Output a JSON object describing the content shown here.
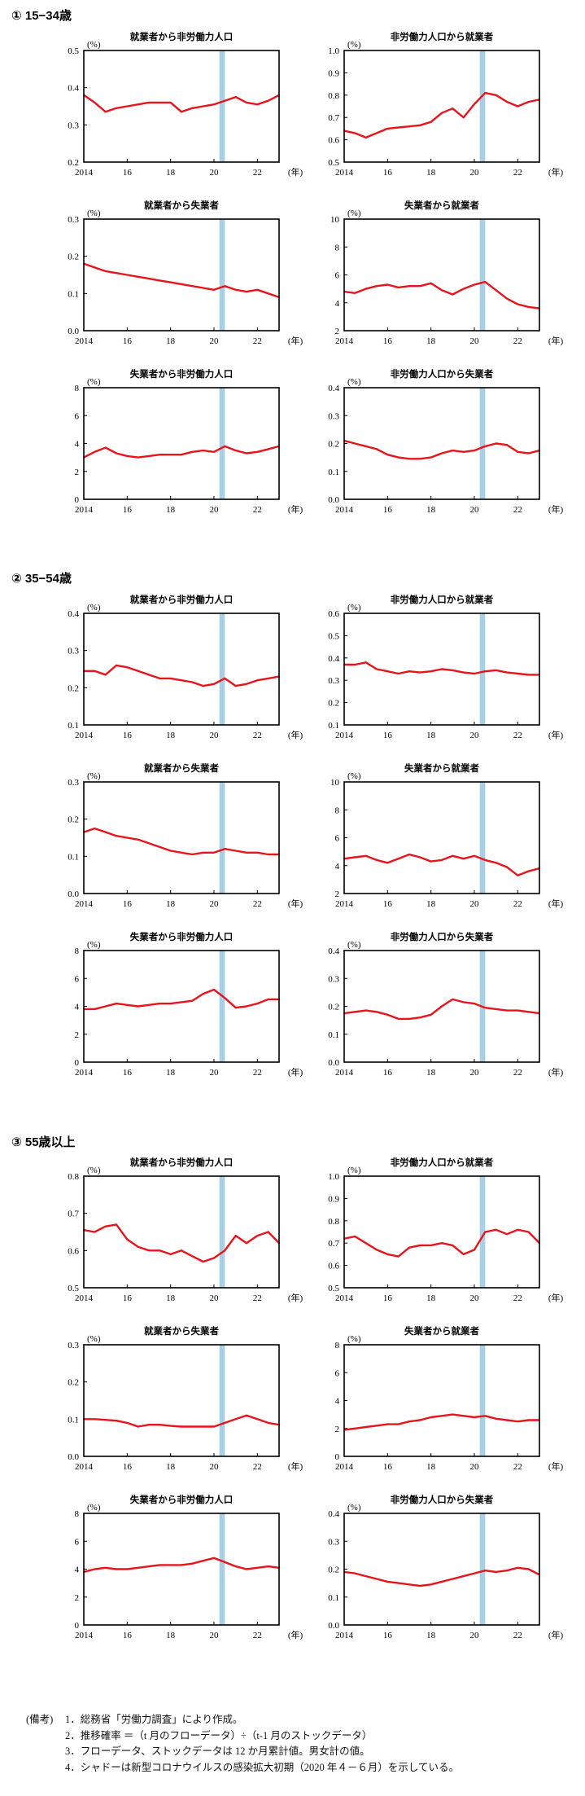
{
  "sections": [
    {
      "title": "① 15−34歳"
    },
    {
      "title": "② 35−54歳"
    },
    {
      "title": "③ 55歳以上"
    }
  ],
  "axis": {
    "y_unit": "(%)",
    "x_unit": "(年)",
    "x_ticks": [
      "2014",
      "16",
      "18",
      "20",
      "22"
    ]
  },
  "shade": {
    "start": 2020.25,
    "end": 2020.5,
    "color": "#a9cfe4"
  },
  "line_color": "#e8141c",
  "chart_data": [
    {
      "type": "line",
      "section": 0,
      "title": "就業者から非労働力人口",
      "ylim": [
        0.2,
        0.5
      ],
      "yticks": [
        "0.2",
        "0.3",
        "0.4",
        "0.5"
      ],
      "x": [
        2014.0,
        2014.5,
        2015.0,
        2015.5,
        2016.0,
        2016.5,
        2017.0,
        2017.5,
        2018.0,
        2018.5,
        2019.0,
        2019.5,
        2020.0,
        2020.5,
        2021.0,
        2021.5,
        2022.0,
        2022.5,
        2023.0
      ],
      "values": [
        0.38,
        0.36,
        0.335,
        0.345,
        0.35,
        0.355,
        0.36,
        0.36,
        0.36,
        0.335,
        0.345,
        0.35,
        0.355,
        0.365,
        0.375,
        0.36,
        0.355,
        0.365,
        0.38
      ]
    },
    {
      "type": "line",
      "section": 0,
      "title": "非労働力人口から就業者",
      "ylim": [
        0.5,
        1.0
      ],
      "yticks": [
        "0.5",
        "0.6",
        "0.7",
        "0.8",
        "0.9",
        "1.0"
      ],
      "x": [
        2014.0,
        2014.5,
        2015.0,
        2015.5,
        2016.0,
        2016.5,
        2017.0,
        2017.5,
        2018.0,
        2018.5,
        2019.0,
        2019.5,
        2020.0,
        2020.5,
        2021.0,
        2021.5,
        2022.0,
        2022.5,
        2023.0
      ],
      "values": [
        0.64,
        0.63,
        0.61,
        0.63,
        0.65,
        0.655,
        0.66,
        0.665,
        0.68,
        0.72,
        0.74,
        0.7,
        0.76,
        0.81,
        0.8,
        0.77,
        0.75,
        0.77,
        0.78
      ]
    },
    {
      "type": "line",
      "section": 0,
      "title": "就業者から失業者",
      "ylim": [
        0.0,
        0.3
      ],
      "yticks": [
        "0.0",
        "0.1",
        "0.2",
        "0.3"
      ],
      "x": [
        2014.0,
        2014.5,
        2015.0,
        2015.5,
        2016.0,
        2016.5,
        2017.0,
        2017.5,
        2018.0,
        2018.5,
        2019.0,
        2019.5,
        2020.0,
        2020.5,
        2021.0,
        2021.5,
        2022.0,
        2022.5,
        2023.0
      ],
      "values": [
        0.18,
        0.17,
        0.16,
        0.155,
        0.15,
        0.145,
        0.14,
        0.135,
        0.13,
        0.125,
        0.12,
        0.115,
        0.11,
        0.12,
        0.11,
        0.105,
        0.11,
        0.1,
        0.09
      ]
    },
    {
      "type": "line",
      "section": 0,
      "title": "失業者から就業者",
      "ylim": [
        2,
        10
      ],
      "yticks": [
        "2",
        "4",
        "6",
        "8",
        "10"
      ],
      "x": [
        2014.0,
        2014.5,
        2015.0,
        2015.5,
        2016.0,
        2016.5,
        2017.0,
        2017.5,
        2018.0,
        2018.5,
        2019.0,
        2019.5,
        2020.0,
        2020.5,
        2021.0,
        2021.5,
        2022.0,
        2022.5,
        2023.0
      ],
      "values": [
        4.8,
        4.7,
        5.0,
        5.2,
        5.3,
        5.1,
        5.2,
        5.2,
        5.4,
        4.9,
        4.6,
        5.0,
        5.3,
        5.5,
        4.9,
        4.3,
        3.9,
        3.7,
        3.6
      ]
    },
    {
      "type": "line",
      "section": 0,
      "title": "失業者から非労働力人口",
      "ylim": [
        0,
        8
      ],
      "yticks": [
        "0",
        "2",
        "4",
        "6",
        "8"
      ],
      "x": [
        2014.0,
        2014.5,
        2015.0,
        2015.5,
        2016.0,
        2016.5,
        2017.0,
        2017.5,
        2018.0,
        2018.5,
        2019.0,
        2019.5,
        2020.0,
        2020.5,
        2021.0,
        2021.5,
        2022.0,
        2022.5,
        2023.0
      ],
      "values": [
        3.0,
        3.4,
        3.7,
        3.3,
        3.1,
        3.0,
        3.1,
        3.2,
        3.2,
        3.2,
        3.4,
        3.5,
        3.4,
        3.8,
        3.5,
        3.3,
        3.4,
        3.6,
        3.8
      ]
    },
    {
      "type": "line",
      "section": 0,
      "title": "非労働力人口から失業者",
      "ylim": [
        0.0,
        0.4
      ],
      "yticks": [
        "0.0",
        "0.1",
        "0.2",
        "0.3",
        "0.4"
      ],
      "x": [
        2014.0,
        2014.5,
        2015.0,
        2015.5,
        2016.0,
        2016.5,
        2017.0,
        2017.5,
        2018.0,
        2018.5,
        2019.0,
        2019.5,
        2020.0,
        2020.5,
        2021.0,
        2021.5,
        2022.0,
        2022.5,
        2023.0
      ],
      "values": [
        0.21,
        0.2,
        0.19,
        0.18,
        0.16,
        0.15,
        0.145,
        0.145,
        0.15,
        0.165,
        0.175,
        0.17,
        0.175,
        0.19,
        0.2,
        0.195,
        0.17,
        0.165,
        0.175
      ]
    },
    {
      "type": "line",
      "section": 1,
      "title": "就業者から非労働力人口",
      "ylim": [
        0.1,
        0.4
      ],
      "yticks": [
        "0.1",
        "0.2",
        "0.3",
        "0.4"
      ],
      "x": [
        2014.0,
        2014.5,
        2015.0,
        2015.5,
        2016.0,
        2016.5,
        2017.0,
        2017.5,
        2018.0,
        2018.5,
        2019.0,
        2019.5,
        2020.0,
        2020.5,
        2021.0,
        2021.5,
        2022.0,
        2022.5,
        2023.0
      ],
      "values": [
        0.245,
        0.245,
        0.235,
        0.26,
        0.255,
        0.245,
        0.235,
        0.225,
        0.225,
        0.22,
        0.215,
        0.205,
        0.21,
        0.225,
        0.205,
        0.21,
        0.22,
        0.225,
        0.23
      ]
    },
    {
      "type": "line",
      "section": 1,
      "title": "非労働力人口から就業者",
      "ylim": [
        0.1,
        0.6
      ],
      "yticks": [
        "0.1",
        "0.2",
        "0.3",
        "0.4",
        "0.5",
        "0.6"
      ],
      "x": [
        2014.0,
        2014.5,
        2015.0,
        2015.5,
        2016.0,
        2016.5,
        2017.0,
        2017.5,
        2018.0,
        2018.5,
        2019.0,
        2019.5,
        2020.0,
        2020.5,
        2021.0,
        2021.5,
        2022.0,
        2022.5,
        2023.0
      ],
      "values": [
        0.37,
        0.37,
        0.38,
        0.35,
        0.34,
        0.33,
        0.34,
        0.335,
        0.34,
        0.35,
        0.345,
        0.335,
        0.33,
        0.34,
        0.345,
        0.335,
        0.33,
        0.325,
        0.325
      ]
    },
    {
      "type": "line",
      "section": 1,
      "title": "就業者から失業者",
      "ylim": [
        0.0,
        0.3
      ],
      "yticks": [
        "0.0",
        "0.1",
        "0.2",
        "0.3"
      ],
      "x": [
        2014.0,
        2014.5,
        2015.0,
        2015.5,
        2016.0,
        2016.5,
        2017.0,
        2017.5,
        2018.0,
        2018.5,
        2019.0,
        2019.5,
        2020.0,
        2020.5,
        2021.0,
        2021.5,
        2022.0,
        2022.5,
        2023.0
      ],
      "values": [
        0.165,
        0.175,
        0.165,
        0.155,
        0.15,
        0.145,
        0.135,
        0.125,
        0.115,
        0.11,
        0.105,
        0.11,
        0.11,
        0.12,
        0.115,
        0.11,
        0.11,
        0.105,
        0.105
      ]
    },
    {
      "type": "line",
      "section": 1,
      "title": "失業者から就業者",
      "ylim": [
        2,
        10
      ],
      "yticks": [
        "2",
        "4",
        "6",
        "8",
        "10"
      ],
      "x": [
        2014.0,
        2014.5,
        2015.0,
        2015.5,
        2016.0,
        2016.5,
        2017.0,
        2017.5,
        2018.0,
        2018.5,
        2019.0,
        2019.5,
        2020.0,
        2020.5,
        2021.0,
        2021.5,
        2022.0,
        2022.5,
        2023.0
      ],
      "values": [
        4.5,
        4.6,
        4.7,
        4.4,
        4.2,
        4.5,
        4.8,
        4.6,
        4.3,
        4.4,
        4.7,
        4.5,
        4.7,
        4.4,
        4.2,
        3.9,
        3.3,
        3.6,
        3.8
      ]
    },
    {
      "type": "line",
      "section": 1,
      "title": "失業者から非労働力人口",
      "ylim": [
        0,
        8
      ],
      "yticks": [
        "0",
        "2",
        "4",
        "6",
        "8"
      ],
      "x": [
        2014.0,
        2014.5,
        2015.0,
        2015.5,
        2016.0,
        2016.5,
        2017.0,
        2017.5,
        2018.0,
        2018.5,
        2019.0,
        2019.5,
        2020.0,
        2020.5,
        2021.0,
        2021.5,
        2022.0,
        2022.5,
        2023.0
      ],
      "values": [
        3.8,
        3.8,
        4.0,
        4.2,
        4.1,
        4.0,
        4.1,
        4.2,
        4.2,
        4.3,
        4.4,
        4.9,
        5.2,
        4.6,
        3.9,
        4.0,
        4.2,
        4.5,
        4.5
      ]
    },
    {
      "type": "line",
      "section": 1,
      "title": "非労働力人口から失業者",
      "ylim": [
        0.0,
        0.4
      ],
      "yticks": [
        "0.0",
        "0.1",
        "0.2",
        "0.3",
        "0.4"
      ],
      "x": [
        2014.0,
        2014.5,
        2015.0,
        2015.5,
        2016.0,
        2016.5,
        2017.0,
        2017.5,
        2018.0,
        2018.5,
        2019.0,
        2019.5,
        2020.0,
        2020.5,
        2021.0,
        2021.5,
        2022.0,
        2022.5,
        2023.0
      ],
      "values": [
        0.175,
        0.18,
        0.185,
        0.18,
        0.17,
        0.155,
        0.155,
        0.16,
        0.17,
        0.2,
        0.225,
        0.215,
        0.21,
        0.195,
        0.19,
        0.185,
        0.185,
        0.18,
        0.175
      ]
    },
    {
      "type": "line",
      "section": 2,
      "title": "就業者から非労働力人口",
      "ylim": [
        0.5,
        0.8
      ],
      "yticks": [
        "0.5",
        "0.6",
        "0.7",
        "0.8"
      ],
      "x": [
        2014.0,
        2014.5,
        2015.0,
        2015.5,
        2016.0,
        2016.5,
        2017.0,
        2017.5,
        2018.0,
        2018.5,
        2019.0,
        2019.5,
        2020.0,
        2020.5,
        2021.0,
        2021.5,
        2022.0,
        2022.5,
        2023.0
      ],
      "values": [
        0.655,
        0.65,
        0.665,
        0.67,
        0.63,
        0.61,
        0.6,
        0.6,
        0.59,
        0.6,
        0.585,
        0.57,
        0.58,
        0.6,
        0.64,
        0.62,
        0.64,
        0.65,
        0.62
      ]
    },
    {
      "type": "line",
      "section": 2,
      "title": "非労働力人口から就業者",
      "ylim": [
        0.5,
        1.0
      ],
      "yticks": [
        "0.5",
        "0.6",
        "0.7",
        "0.8",
        "0.9",
        "1.0"
      ],
      "x": [
        2014.0,
        2014.5,
        2015.0,
        2015.5,
        2016.0,
        2016.5,
        2017.0,
        2017.5,
        2018.0,
        2018.5,
        2019.0,
        2019.5,
        2020.0,
        2020.5,
        2021.0,
        2021.5,
        2022.0,
        2022.5,
        2023.0
      ],
      "values": [
        0.72,
        0.73,
        0.7,
        0.67,
        0.65,
        0.64,
        0.68,
        0.69,
        0.69,
        0.7,
        0.69,
        0.65,
        0.67,
        0.75,
        0.76,
        0.74,
        0.76,
        0.75,
        0.7
      ]
    },
    {
      "type": "line",
      "section": 2,
      "title": "就業者から失業者",
      "ylim": [
        0.0,
        0.3
      ],
      "yticks": [
        "0.0",
        "0.1",
        "0.2",
        "0.3"
      ],
      "x": [
        2014.0,
        2014.5,
        2015.0,
        2015.5,
        2016.0,
        2016.5,
        2017.0,
        2017.5,
        2018.0,
        2018.5,
        2019.0,
        2019.5,
        2020.0,
        2020.5,
        2021.0,
        2021.5,
        2022.0,
        2022.5,
        2023.0
      ],
      "values": [
        0.1,
        0.1,
        0.098,
        0.096,
        0.09,
        0.08,
        0.085,
        0.085,
        0.082,
        0.08,
        0.08,
        0.08,
        0.08,
        0.09,
        0.1,
        0.11,
        0.1,
        0.09,
        0.085
      ]
    },
    {
      "type": "line",
      "section": 2,
      "title": "失業者から就業者",
      "ylim": [
        0,
        8
      ],
      "yticks": [
        "0",
        "2",
        "4",
        "6",
        "8"
      ],
      "x": [
        2014.0,
        2014.5,
        2015.0,
        2015.5,
        2016.0,
        2016.5,
        2017.0,
        2017.5,
        2018.0,
        2018.5,
        2019.0,
        2019.5,
        2020.0,
        2020.5,
        2021.0,
        2021.5,
        2022.0,
        2022.5,
        2023.0
      ],
      "values": [
        1.9,
        2.0,
        2.1,
        2.2,
        2.3,
        2.3,
        2.5,
        2.6,
        2.8,
        2.9,
        3.0,
        2.9,
        2.8,
        2.9,
        2.7,
        2.6,
        2.5,
        2.6,
        2.6
      ]
    },
    {
      "type": "line",
      "section": 2,
      "title": "失業者から非労働力人口",
      "ylim": [
        0,
        8
      ],
      "yticks": [
        "0",
        "2",
        "4",
        "6",
        "8"
      ],
      "x": [
        2014.0,
        2014.5,
        2015.0,
        2015.5,
        2016.0,
        2016.5,
        2017.0,
        2017.5,
        2018.0,
        2018.5,
        2019.0,
        2019.5,
        2020.0,
        2020.5,
        2021.0,
        2021.5,
        2022.0,
        2022.5,
        2023.0
      ],
      "values": [
        3.8,
        4.0,
        4.1,
        4.0,
        4.0,
        4.1,
        4.2,
        4.3,
        4.3,
        4.3,
        4.4,
        4.6,
        4.8,
        4.5,
        4.2,
        4.0,
        4.1,
        4.2,
        4.1
      ]
    },
    {
      "type": "line",
      "section": 2,
      "title": "非労働力人口から失業者",
      "ylim": [
        0.0,
        0.4
      ],
      "yticks": [
        "0.0",
        "0.1",
        "0.2",
        "0.3",
        "0.4"
      ],
      "x": [
        2014.0,
        2014.5,
        2015.0,
        2015.5,
        2016.0,
        2016.5,
        2017.0,
        2017.5,
        2018.0,
        2018.5,
        2019.0,
        2019.5,
        2020.0,
        2020.5,
        2021.0,
        2021.5,
        2022.0,
        2022.5,
        2023.0
      ],
      "values": [
        0.19,
        0.185,
        0.175,
        0.165,
        0.155,
        0.15,
        0.145,
        0.14,
        0.145,
        0.155,
        0.165,
        0.175,
        0.185,
        0.195,
        0.19,
        0.195,
        0.205,
        0.2,
        0.18
      ]
    }
  ],
  "notes": {
    "label": "(備考)",
    "items": [
      "1．総務省「労働力調査」により作成。",
      "2．推移確率 ＝（t 月のフローデータ）÷（t-1 月のストックデータ）",
      "3．フローデータ、ストックデータは 12 か月累計値。男女計の値。",
      "4．シャドーは新型コロナウイルスの感染拡大初期（2020 年４－６月）を示している。"
    ]
  }
}
